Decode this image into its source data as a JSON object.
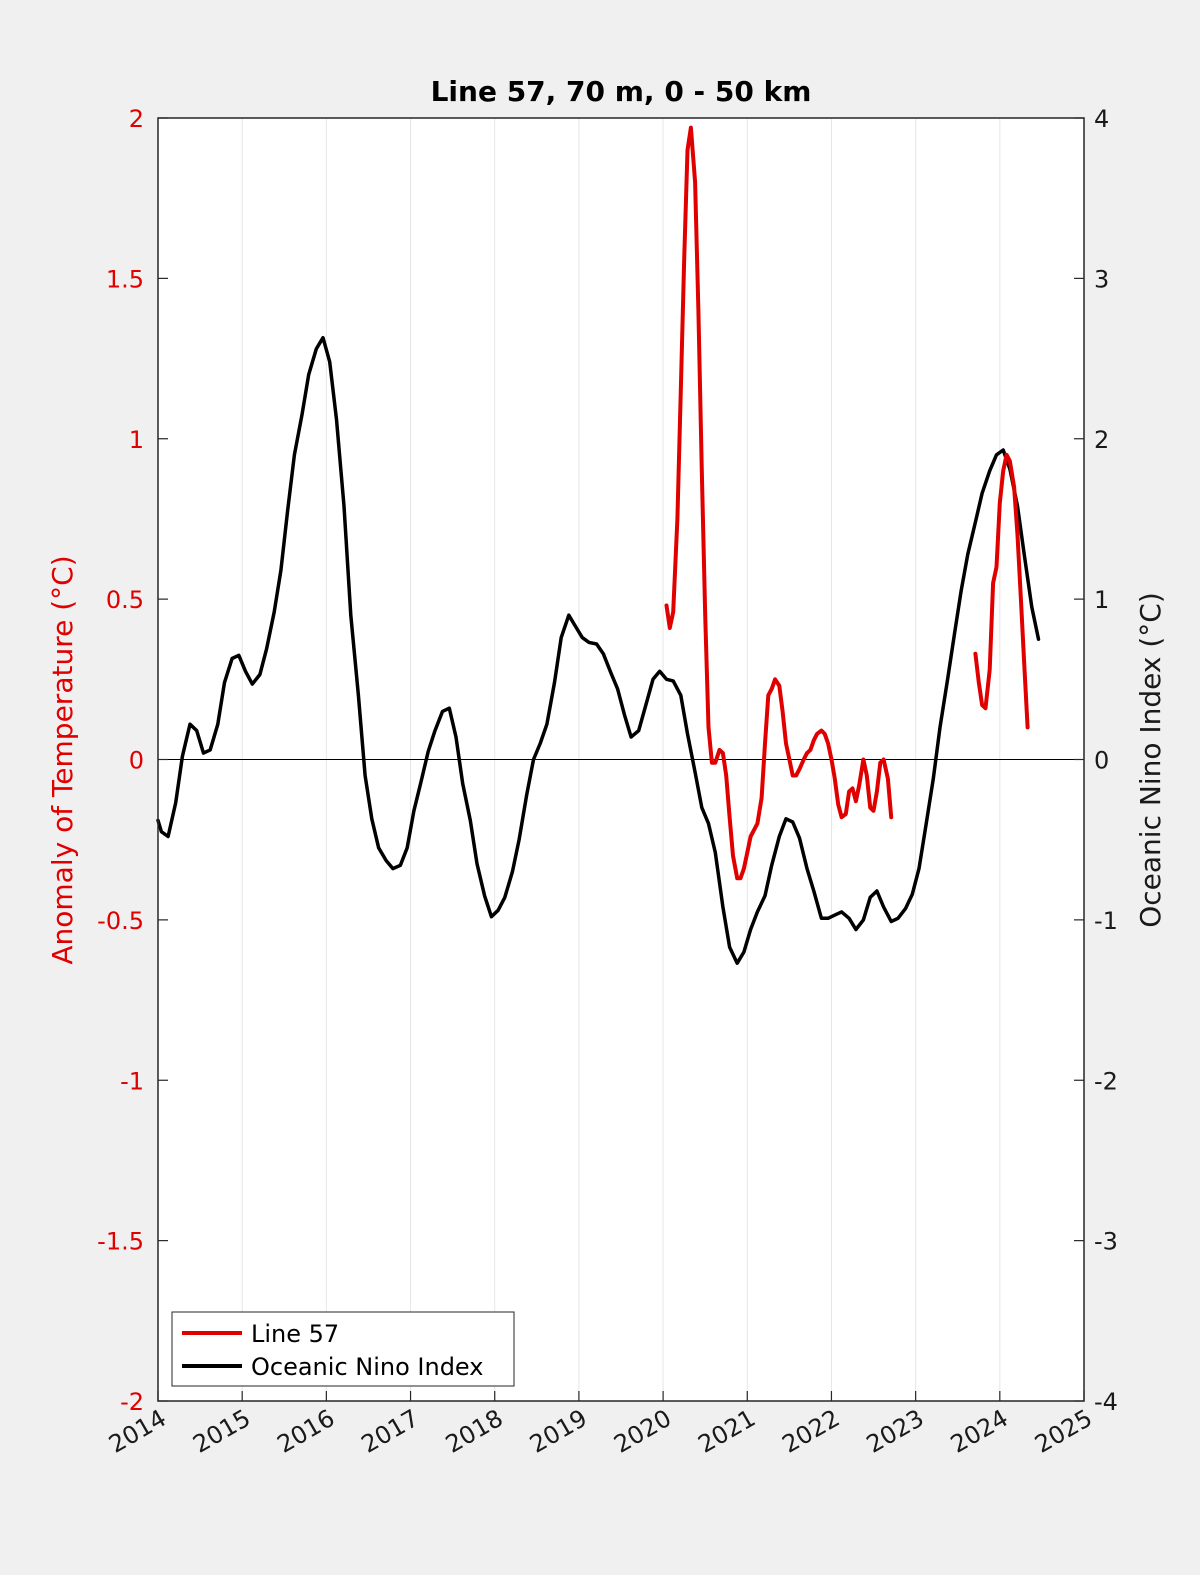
{
  "chart_data": {
    "type": "line",
    "title": "Line 57, 70 m, 0 - 50 km",
    "xlabel": "",
    "ylabel_left": "Anomaly of Temperature (°C)",
    "ylabel_right": "Oceanic Nino Index (°C)",
    "xlim": [
      2014,
      2025
    ],
    "ylim_left": [
      -2,
      2
    ],
    "ylim_right": [
      -4,
      4
    ],
    "x_ticks": [
      "2014",
      "2015",
      "2016",
      "2017",
      "2018",
      "2019",
      "2020",
      "2021",
      "2022",
      "2023",
      "2024",
      "2025"
    ],
    "y_left_ticks": [
      "-2",
      "-1.5",
      "-1",
      "-0.5",
      "0",
      "0.5",
      "1",
      "1.5",
      "2"
    ],
    "y_right_ticks": [
      "-4",
      "-3",
      "-2",
      "-1",
      "0",
      "1",
      "2",
      "3",
      "4"
    ],
    "grid": "vertical",
    "zero_line": true,
    "legend_position": "bottom-left",
    "legend": [
      "Line 57",
      "Oceanic Nino Index"
    ],
    "colors": {
      "line57": "#e00000",
      "oni": "#000000",
      "left_axis": "#e00000",
      "right_axis": "#1a1a1a"
    },
    "series": [
      {
        "name": "Line 57",
        "axis": "left",
        "segments": [
          [
            [
              2020.04,
              0.48
            ],
            [
              2020.08,
              0.41
            ],
            [
              2020.12,
              0.46
            ],
            [
              2020.17,
              0.75
            ],
            [
              2020.21,
              1.15
            ],
            [
              2020.25,
              1.55
            ],
            [
              2020.29,
              1.9
            ],
            [
              2020.33,
              1.97
            ],
            [
              2020.38,
              1.8
            ],
            [
              2020.42,
              1.4
            ],
            [
              2020.46,
              0.9
            ],
            [
              2020.5,
              0.45
            ],
            [
              2020.54,
              0.1
            ],
            [
              2020.58,
              -0.01
            ],
            [
              2020.62,
              -0.01
            ],
            [
              2020.67,
              0.03
            ],
            [
              2020.71,
              0.02
            ],
            [
              2020.75,
              -0.05
            ],
            [
              2020.79,
              -0.18
            ],
            [
              2020.83,
              -0.3
            ],
            [
              2020.88,
              -0.37
            ],
            [
              2020.92,
              -0.37
            ],
            [
              2020.96,
              -0.34
            ],
            [
              2021.0,
              -0.29
            ],
            [
              2021.04,
              -0.24
            ],
            [
              2021.08,
              -0.22
            ],
            [
              2021.12,
              -0.2
            ],
            [
              2021.17,
              -0.12
            ],
            [
              2021.21,
              0.05
            ],
            [
              2021.25,
              0.2
            ],
            [
              2021.29,
              0.22
            ],
            [
              2021.33,
              0.25
            ],
            [
              2021.38,
              0.23
            ],
            [
              2021.42,
              0.15
            ],
            [
              2021.46,
              0.05
            ],
            [
              2021.5,
              0.0
            ],
            [
              2021.54,
              -0.05
            ],
            [
              2021.58,
              -0.05
            ],
            [
              2021.62,
              -0.03
            ],
            [
              2021.67,
              0.0
            ],
            [
              2021.71,
              0.02
            ],
            [
              2021.75,
              0.03
            ],
            [
              2021.79,
              0.06
            ],
            [
              2021.83,
              0.08
            ],
            [
              2021.88,
              0.09
            ],
            [
              2021.92,
              0.08
            ],
            [
              2021.96,
              0.05
            ],
            [
              2022.0,
              0.0
            ],
            [
              2022.04,
              -0.06
            ],
            [
              2022.08,
              -0.14
            ],
            [
              2022.12,
              -0.18
            ],
            [
              2022.17,
              -0.17
            ],
            [
              2022.21,
              -0.1
            ],
            [
              2022.25,
              -0.09
            ],
            [
              2022.29,
              -0.13
            ],
            [
              2022.33,
              -0.08
            ],
            [
              2022.38,
              0.0
            ],
            [
              2022.42,
              -0.05
            ],
            [
              2022.46,
              -0.15
            ],
            [
              2022.5,
              -0.16
            ],
            [
              2022.54,
              -0.1
            ],
            [
              2022.58,
              -0.01
            ],
            [
              2022.62,
              0.0
            ],
            [
              2022.67,
              -0.06
            ],
            [
              2022.71,
              -0.18
            ]
          ],
          [
            [
              2023.71,
              0.33
            ],
            [
              2023.75,
              0.24
            ],
            [
              2023.79,
              0.17
            ],
            [
              2023.83,
              0.16
            ],
            [
              2023.88,
              0.28
            ],
            [
              2023.92,
              0.55
            ],
            [
              2023.96,
              0.6
            ],
            [
              2024.0,
              0.8
            ],
            [
              2024.04,
              0.9
            ],
            [
              2024.08,
              0.95
            ],
            [
              2024.12,
              0.93
            ],
            [
              2024.17,
              0.85
            ],
            [
              2024.21,
              0.7
            ],
            [
              2024.25,
              0.5
            ],
            [
              2024.29,
              0.3
            ],
            [
              2024.33,
              0.1
            ]
          ]
        ]
      },
      {
        "name": "Oceanic Nino Index",
        "axis": "right",
        "points": [
          [
            2014.0,
            -0.38
          ],
          [
            2014.04,
            -0.45
          ],
          [
            2014.12,
            -0.48
          ],
          [
            2014.21,
            -0.27
          ],
          [
            2014.29,
            0.02
          ],
          [
            2014.38,
            0.22
          ],
          [
            2014.46,
            0.18
          ],
          [
            2014.54,
            0.04
          ],
          [
            2014.62,
            0.06
          ],
          [
            2014.71,
            0.22
          ],
          [
            2014.79,
            0.48
          ],
          [
            2014.88,
            0.63
          ],
          [
            2014.96,
            0.65
          ],
          [
            2015.04,
            0.55
          ],
          [
            2015.12,
            0.47
          ],
          [
            2015.21,
            0.53
          ],
          [
            2015.29,
            0.69
          ],
          [
            2015.38,
            0.92
          ],
          [
            2015.46,
            1.18
          ],
          [
            2015.54,
            1.55
          ],
          [
            2015.62,
            1.9
          ],
          [
            2015.71,
            2.15
          ],
          [
            2015.79,
            2.4
          ],
          [
            2015.88,
            2.56
          ],
          [
            2015.96,
            2.63
          ],
          [
            2016.04,
            2.48
          ],
          [
            2016.12,
            2.12
          ],
          [
            2016.21,
            1.58
          ],
          [
            2016.29,
            0.9
          ],
          [
            2016.38,
            0.4
          ],
          [
            2016.46,
            -0.1
          ],
          [
            2016.54,
            -0.37
          ],
          [
            2016.62,
            -0.55
          ],
          [
            2016.71,
            -0.63
          ],
          [
            2016.79,
            -0.68
          ],
          [
            2016.88,
            -0.66
          ],
          [
            2016.96,
            -0.55
          ],
          [
            2017.04,
            -0.32
          ],
          [
            2017.12,
            -0.15
          ],
          [
            2017.21,
            0.05
          ],
          [
            2017.29,
            0.18
          ],
          [
            2017.38,
            0.3
          ],
          [
            2017.46,
            0.32
          ],
          [
            2017.54,
            0.14
          ],
          [
            2017.62,
            -0.15
          ],
          [
            2017.71,
            -0.38
          ],
          [
            2017.79,
            -0.65
          ],
          [
            2017.88,
            -0.85
          ],
          [
            2017.96,
            -0.98
          ],
          [
            2018.04,
            -0.94
          ],
          [
            2018.12,
            -0.86
          ],
          [
            2018.21,
            -0.7
          ],
          [
            2018.29,
            -0.5
          ],
          [
            2018.38,
            -0.22
          ],
          [
            2018.46,
            0.0
          ],
          [
            2018.54,
            0.1
          ],
          [
            2018.62,
            0.22
          ],
          [
            2018.71,
            0.48
          ],
          [
            2018.79,
            0.76
          ],
          [
            2018.88,
            0.9
          ],
          [
            2018.96,
            0.83
          ],
          [
            2019.04,
            0.76
          ],
          [
            2019.12,
            0.73
          ],
          [
            2019.21,
            0.72
          ],
          [
            2019.29,
            0.66
          ],
          [
            2019.38,
            0.54
          ],
          [
            2019.46,
            0.44
          ],
          [
            2019.54,
            0.28
          ],
          [
            2019.62,
            0.14
          ],
          [
            2019.71,
            0.18
          ],
          [
            2019.79,
            0.33
          ],
          [
            2019.88,
            0.5
          ],
          [
            2019.96,
            0.55
          ],
          [
            2020.04,
            0.5
          ],
          [
            2020.12,
            0.49
          ],
          [
            2020.21,
            0.4
          ],
          [
            2020.29,
            0.16
          ],
          [
            2020.38,
            -0.08
          ],
          [
            2020.46,
            -0.3
          ],
          [
            2020.54,
            -0.4
          ],
          [
            2020.62,
            -0.58
          ],
          [
            2020.71,
            -0.92
          ],
          [
            2020.79,
            -1.17
          ],
          [
            2020.88,
            -1.27
          ],
          [
            2020.96,
            -1.2
          ],
          [
            2021.04,
            -1.06
          ],
          [
            2021.12,
            -0.95
          ],
          [
            2021.21,
            -0.85
          ],
          [
            2021.29,
            -0.66
          ],
          [
            2021.38,
            -0.48
          ],
          [
            2021.46,
            -0.37
          ],
          [
            2021.54,
            -0.39
          ],
          [
            2021.62,
            -0.49
          ],
          [
            2021.71,
            -0.68
          ],
          [
            2021.79,
            -0.82
          ],
          [
            2021.88,
            -0.99
          ],
          [
            2021.96,
            -0.99
          ],
          [
            2022.04,
            -0.97
          ],
          [
            2022.12,
            -0.95
          ],
          [
            2022.21,
            -0.99
          ],
          [
            2022.29,
            -1.06
          ],
          [
            2022.38,
            -1.0
          ],
          [
            2022.46,
            -0.86
          ],
          [
            2022.54,
            -0.82
          ],
          [
            2022.62,
            -0.92
          ],
          [
            2022.71,
            -1.01
          ],
          [
            2022.79,
            -0.99
          ],
          [
            2022.88,
            -0.93
          ],
          [
            2022.96,
            -0.84
          ],
          [
            2023.04,
            -0.68
          ],
          [
            2023.12,
            -0.42
          ],
          [
            2023.21,
            -0.12
          ],
          [
            2023.29,
            0.2
          ],
          [
            2023.38,
            0.5
          ],
          [
            2023.46,
            0.78
          ],
          [
            2023.54,
            1.05
          ],
          [
            2023.62,
            1.28
          ],
          [
            2023.71,
            1.48
          ],
          [
            2023.79,
            1.66
          ],
          [
            2023.88,
            1.8
          ],
          [
            2023.96,
            1.9
          ],
          [
            2024.04,
            1.93
          ],
          [
            2024.12,
            1.81
          ],
          [
            2024.21,
            1.58
          ],
          [
            2024.29,
            1.28
          ],
          [
            2024.38,
            0.95
          ],
          [
            2024.46,
            0.75
          ]
        ]
      }
    ]
  }
}
